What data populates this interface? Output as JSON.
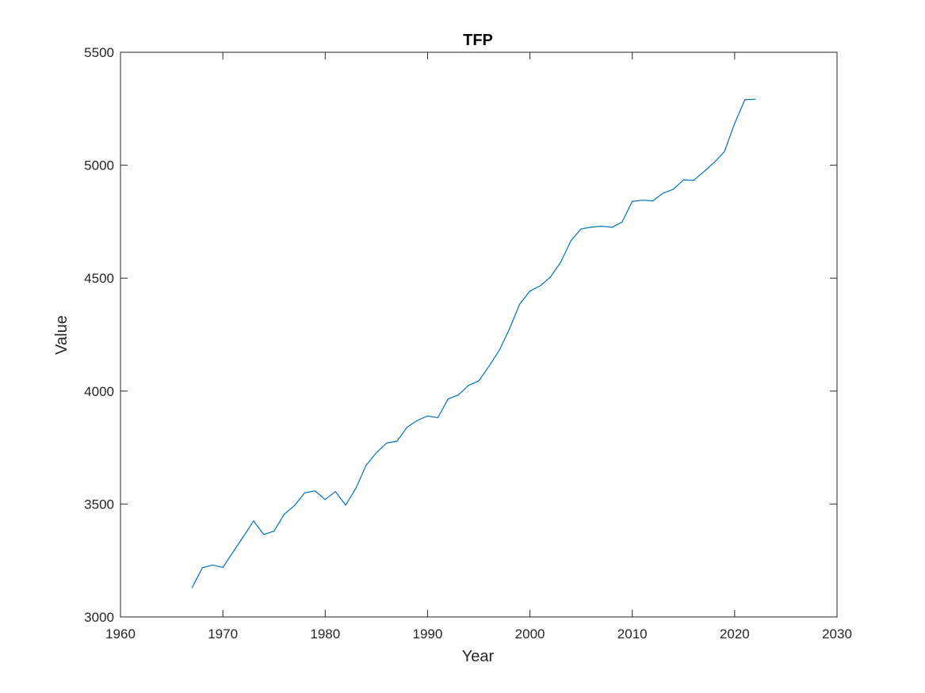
{
  "chart_data": {
    "type": "line",
    "title": "TFP",
    "xlabel": "Year",
    "ylabel": "Value",
    "xlim": [
      1960,
      2030
    ],
    "ylim": [
      3000,
      5500
    ],
    "xticks": [
      1960,
      1970,
      1980,
      1990,
      2000,
      2010,
      2020,
      2030
    ],
    "yticks": [
      3000,
      3500,
      4000,
      4500,
      5000,
      5500
    ],
    "xtick_labels": [
      "1960",
      "1970",
      "1980",
      "1990",
      "2000",
      "2010",
      "2020",
      "2030"
    ],
    "ytick_labels": [
      "3000",
      "3500",
      "4000",
      "4500",
      "5000",
      "5500"
    ],
    "grid": false,
    "legend": "none",
    "series": [
      {
        "color": "#0072BD",
        "x": [
          1967,
          1968,
          1969,
          1970,
          1971,
          1972,
          1973,
          1974,
          1975,
          1976,
          1977,
          1978,
          1979,
          1980,
          1981,
          1982,
          1983,
          1984,
          1985,
          1986,
          1987,
          1988,
          1989,
          1990,
          1991,
          1992,
          1993,
          1994,
          1995,
          1996,
          1997,
          1998,
          1999,
          2000,
          2001,
          2002,
          2003,
          2004,
          2005,
          2006,
          2007,
          2008,
          2009,
          2010,
          2011,
          2012,
          2013,
          2014,
          2015,
          2016,
          2017,
          2018,
          2019,
          2020,
          2021,
          2022
        ],
        "y": [
          3130,
          3218,
          3230,
          3219,
          3288,
          3355,
          3425,
          3365,
          3380,
          3455,
          3493,
          3550,
          3558,
          3520,
          3555,
          3495,
          3570,
          3672,
          3727,
          3770,
          3778,
          3840,
          3870,
          3890,
          3882,
          3965,
          3983,
          4025,
          4045,
          4110,
          4180,
          4275,
          4385,
          4443,
          4466,
          4505,
          4570,
          4665,
          4718,
          4726,
          4730,
          4725,
          4748,
          4840,
          4845,
          4842,
          4876,
          4893,
          4935,
          4933,
          4972,
          5012,
          5060,
          5185,
          5290,
          5292
        ]
      }
    ]
  }
}
